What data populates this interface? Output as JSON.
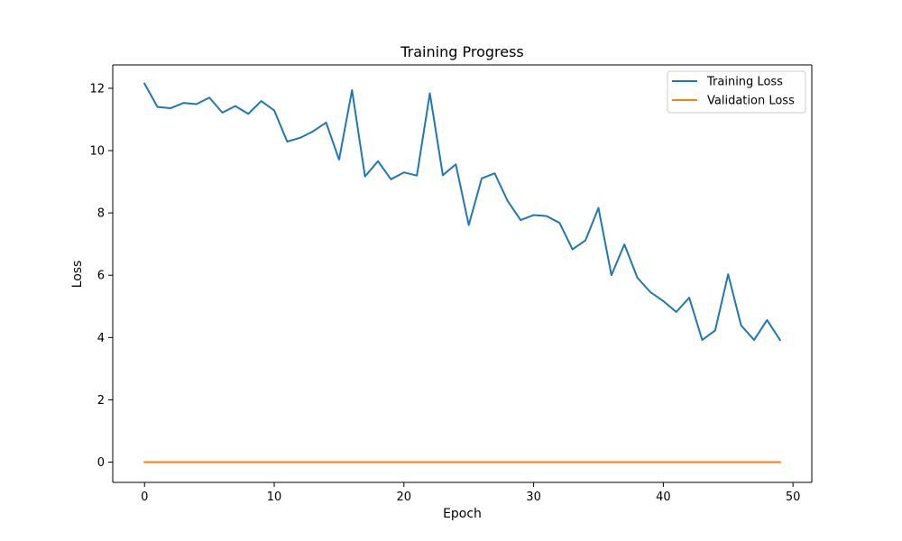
{
  "chart_data": {
    "type": "line",
    "title": "Training Progress",
    "xlabel": "Epoch",
    "ylabel": "Loss",
    "xlim": [
      -2.45,
      51.45
    ],
    "ylim": [
      -0.65,
      12.75
    ],
    "xticks": [
      0,
      10,
      20,
      30,
      40,
      50
    ],
    "yticks": [
      0,
      2,
      4,
      6,
      8,
      10,
      12
    ],
    "grid": false,
    "legend_position": "top-right",
    "x": [
      0,
      1,
      2,
      3,
      4,
      5,
      6,
      7,
      8,
      9,
      10,
      11,
      12,
      13,
      14,
      15,
      16,
      17,
      18,
      19,
      20,
      21,
      22,
      23,
      24,
      25,
      26,
      27,
      28,
      29,
      30,
      31,
      32,
      33,
      34,
      35,
      36,
      37,
      38,
      39,
      40,
      41,
      42,
      43,
      44,
      45,
      46,
      47,
      48,
      49
    ],
    "series": [
      {
        "name": "Training Loss",
        "color": "#1f77b4",
        "values": [
          12.15,
          11.4,
          11.36,
          11.53,
          11.49,
          11.7,
          11.22,
          11.43,
          11.18,
          11.59,
          11.29,
          10.29,
          10.41,
          10.62,
          10.9,
          9.71,
          11.94,
          9.17,
          9.66,
          9.08,
          9.3,
          9.2,
          11.84,
          9.21,
          9.56,
          7.61,
          9.11,
          9.27,
          8.38,
          7.77,
          7.93,
          7.9,
          7.68,
          6.83,
          7.12,
          8.16,
          6.0,
          6.99,
          5.92,
          5.46,
          5.17,
          4.82,
          5.28,
          3.92,
          4.23,
          6.03,
          4.39,
          3.92,
          4.56,
          3.92
        ]
      },
      {
        "name": "Validation Loss",
        "color": "#ff7f0e",
        "values": [
          0,
          0,
          0,
          0,
          0,
          0,
          0,
          0,
          0,
          0,
          0,
          0,
          0,
          0,
          0,
          0,
          0,
          0,
          0,
          0,
          0,
          0,
          0,
          0,
          0,
          0,
          0,
          0,
          0,
          0,
          0,
          0,
          0,
          0,
          0,
          0,
          0,
          0,
          0,
          0,
          0,
          0,
          0,
          0,
          0,
          0,
          0,
          0,
          0,
          0
        ]
      }
    ]
  }
}
